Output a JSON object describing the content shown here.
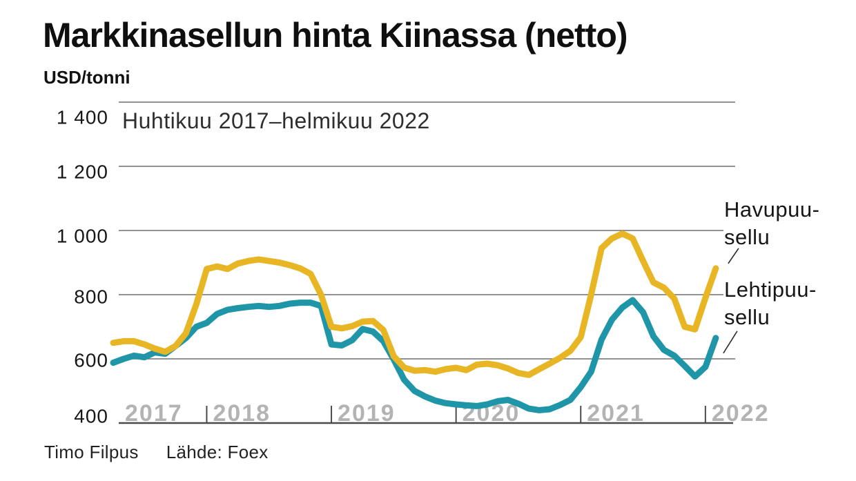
{
  "header": {
    "title": "Markkinasellun hinta Kiinassa  (netto)",
    "unit_label": "USD/tonni"
  },
  "annotation": "Huhtikuu 2017–helmikuu 2022",
  "legend": {
    "havupuu_label": "Havupuu-\nsellu",
    "lehtipuu_label": "Lehtipuu-\nsellu"
  },
  "footer": {
    "byline": "Timo Filpus",
    "source": "Lähde: Foex"
  },
  "colors": {
    "havupuu": "#E8B525",
    "lehtipuu": "#1E96A8",
    "year_label": "#b3b3b3",
    "gridline": "#6e6e6e",
    "axis": "#4a4a4a",
    "text": "#161616"
  },
  "chart_data": {
    "type": "line",
    "title": "Markkinasellun hinta Kiinassa (netto)",
    "period": "Huhtikuu 2017–helmikuu 2022",
    "unit": "USD/tonni",
    "ylim": [
      400,
      1400
    ],
    "grid": "horizontal",
    "legend_position": "right",
    "y_ticks": [
      {
        "value": 400,
        "label": "400"
      },
      {
        "value": 600,
        "label": "600"
      },
      {
        "value": 800,
        "label": "800"
      },
      {
        "value": 1000,
        "label": "1 000"
      },
      {
        "value": 1200,
        "label": "1 200"
      },
      {
        "value": 1400,
        "label": "1 400"
      }
    ],
    "x_ticks": [
      "2017",
      "2018",
      "2019",
      "2020",
      "2021",
      "2022"
    ],
    "months": [
      "2017-04",
      "2017-05",
      "2017-06",
      "2017-07",
      "2017-08",
      "2017-09",
      "2017-10",
      "2017-11",
      "2017-12",
      "2018-01",
      "2018-02",
      "2018-03",
      "2018-04",
      "2018-05",
      "2018-06",
      "2018-07",
      "2018-08",
      "2018-09",
      "2018-10",
      "2018-11",
      "2018-12",
      "2019-01",
      "2019-02",
      "2019-03",
      "2019-04",
      "2019-05",
      "2019-06",
      "2019-07",
      "2019-08",
      "2019-09",
      "2019-10",
      "2019-11",
      "2019-12",
      "2020-01",
      "2020-02",
      "2020-03",
      "2020-04",
      "2020-05",
      "2020-06",
      "2020-07",
      "2020-08",
      "2020-09",
      "2020-10",
      "2020-11",
      "2020-12",
      "2021-01",
      "2021-02",
      "2021-03",
      "2021-04",
      "2021-05",
      "2021-06",
      "2021-07",
      "2021-08",
      "2021-09",
      "2021-10",
      "2021-11",
      "2021-12",
      "2022-01",
      "2022-02"
    ],
    "series": [
      {
        "name": "Havupuusellu",
        "color": "#E8B525",
        "values": [
          650,
          655,
          655,
          645,
          632,
          622,
          640,
          680,
          770,
          880,
          888,
          880,
          897,
          905,
          910,
          905,
          900,
          892,
          882,
          865,
          800,
          700,
          695,
          702,
          716,
          718,
          690,
          608,
          573,
          563,
          565,
          560,
          568,
          572,
          565,
          582,
          585,
          580,
          570,
          556,
          550,
          568,
          585,
          603,
          625,
          668,
          800,
          945,
          975,
          990,
          975,
          905,
          838,
          822,
          788,
          700,
          692,
          790,
          882
        ]
      },
      {
        "name": "Lehtipuusellu",
        "color": "#1E96A8",
        "values": [
          588,
          600,
          610,
          605,
          620,
          616,
          640,
          665,
          700,
          712,
          740,
          753,
          758,
          762,
          765,
          762,
          765,
          772,
          775,
          775,
          765,
          645,
          642,
          658,
          693,
          685,
          655,
          598,
          535,
          500,
          483,
          470,
          462,
          458,
          455,
          453,
          458,
          468,
          472,
          460,
          445,
          440,
          443,
          456,
          472,
          512,
          560,
          660,
          722,
          760,
          783,
          745,
          670,
          628,
          610,
          578,
          545,
          575,
          665
        ]
      }
    ]
  }
}
